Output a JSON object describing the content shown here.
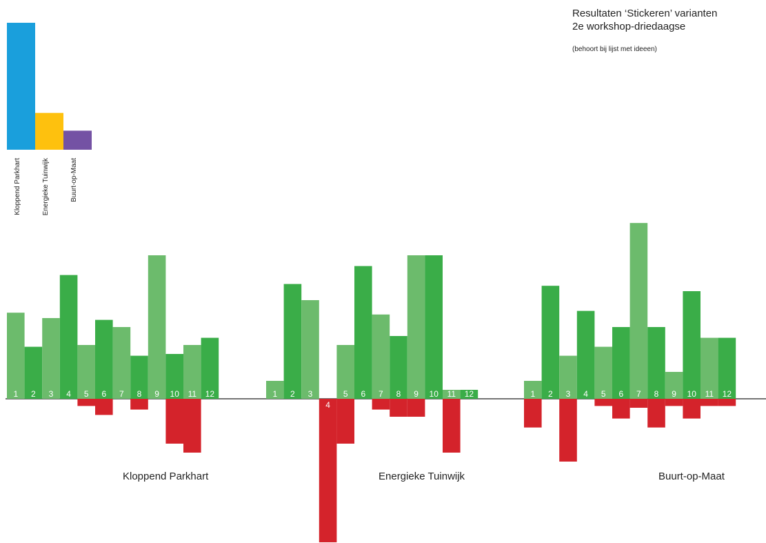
{
  "header": {
    "title_line1": "Resultaten ‘Stickeren’ varianten",
    "title_line2": "2e workshop-driedaagse",
    "note": "(behoort bij lijst met ideeen)"
  },
  "colors": {
    "positive_light": "#6cbb6c",
    "positive_dark": "#3aad48",
    "negative": "#d4232b",
    "summary": [
      "#1a9fdc",
      "#fec10e",
      "#7452a4"
    ],
    "axis": "#222222"
  },
  "chart_data": [
    {
      "type": "bar",
      "title": "",
      "categories": [
        "Kloppend Parkhart",
        "Energieke Tuinwijk",
        "Buurt-op-Maat"
      ],
      "values": [
        100,
        29,
        15
      ],
      "colors": [
        "#1a9fdc",
        "#fec10e",
        "#7452a4"
      ]
    },
    {
      "type": "bar",
      "title": "",
      "categories": [
        "1",
        "2",
        "3",
        "4",
        "5",
        "6",
        "7",
        "8",
        "9",
        "10",
        "11",
        "12"
      ],
      "groups": [
        {
          "name": "Kloppend Parkhart",
          "positive": [
            48,
            29,
            45,
            69,
            30,
            44,
            40,
            24,
            80,
            25,
            30,
            34
          ],
          "negative": [
            0,
            0,
            0,
            0,
            -4,
            -9,
            0,
            -6,
            0,
            -25,
            -30,
            0
          ]
        },
        {
          "name": "Energieke Tuinwijk",
          "positive": [
            10,
            64,
            55,
            0,
            30,
            74,
            47,
            35,
            80,
            80,
            5,
            5
          ],
          "negative": [
            0,
            0,
            0,
            -80,
            -25,
            0,
            -6,
            -10,
            -10,
            0,
            -30,
            0
          ]
        },
        {
          "name": "Buurt-op-Maat",
          "positive": [
            10,
            63,
            24,
            49,
            29,
            40,
            98,
            40,
            15,
            60,
            34,
            34
          ],
          "negative": [
            -16,
            0,
            -35,
            0,
            -4,
            -11,
            -5,
            -16,
            -4,
            -11,
            -4,
            -4
          ]
        }
      ],
      "shade_pattern": [
        "light",
        "dark",
        "light",
        "dark",
        "light",
        "dark",
        "light",
        "dark",
        "light",
        "dark",
        "light",
        "dark"
      ]
    }
  ]
}
